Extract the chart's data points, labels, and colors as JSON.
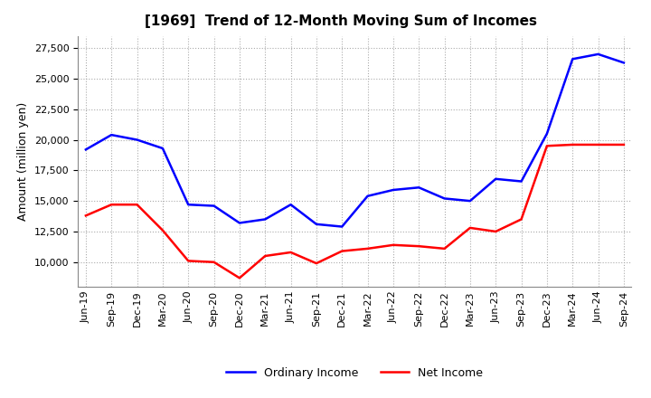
{
  "title": "[1969]  Trend of 12-Month Moving Sum of Incomes",
  "ylabel": "Amount (million yen)",
  "background_color": "#ffffff",
  "plot_background": "#ffffff",
  "x_labels": [
    "Jun-19",
    "Sep-19",
    "Dec-19",
    "Mar-20",
    "Jun-20",
    "Sep-20",
    "Dec-20",
    "Mar-21",
    "Jun-21",
    "Sep-21",
    "Dec-21",
    "Mar-22",
    "Jun-22",
    "Sep-22",
    "Dec-22",
    "Mar-23",
    "Jun-23",
    "Sep-23",
    "Dec-23",
    "Mar-24",
    "Jun-24",
    "Sep-24"
  ],
  "ordinary_income": [
    19200,
    20400,
    20000,
    19300,
    14700,
    14600,
    13200,
    13500,
    14700,
    13100,
    12900,
    15400,
    15900,
    16100,
    15200,
    15000,
    16800,
    16600,
    20500,
    26600,
    27000,
    26300
  ],
  "net_income": [
    13800,
    14700,
    14700,
    12600,
    10100,
    10000,
    8700,
    10500,
    10800,
    9900,
    10900,
    11100,
    11400,
    11300,
    11100,
    12800,
    12500,
    13500,
    19500,
    19600,
    19600,
    19600
  ],
  "ordinary_color": "#0000ff",
  "net_color": "#ff0000",
  "ylim": [
    8000,
    28500
  ],
  "yticks": [
    10000,
    12500,
    15000,
    17500,
    20000,
    22500,
    25000,
    27500
  ],
  "grid_color": "#aaaaaa",
  "title_fontsize": 11,
  "axis_fontsize": 8,
  "legend_fontsize": 9,
  "linewidth": 1.8
}
